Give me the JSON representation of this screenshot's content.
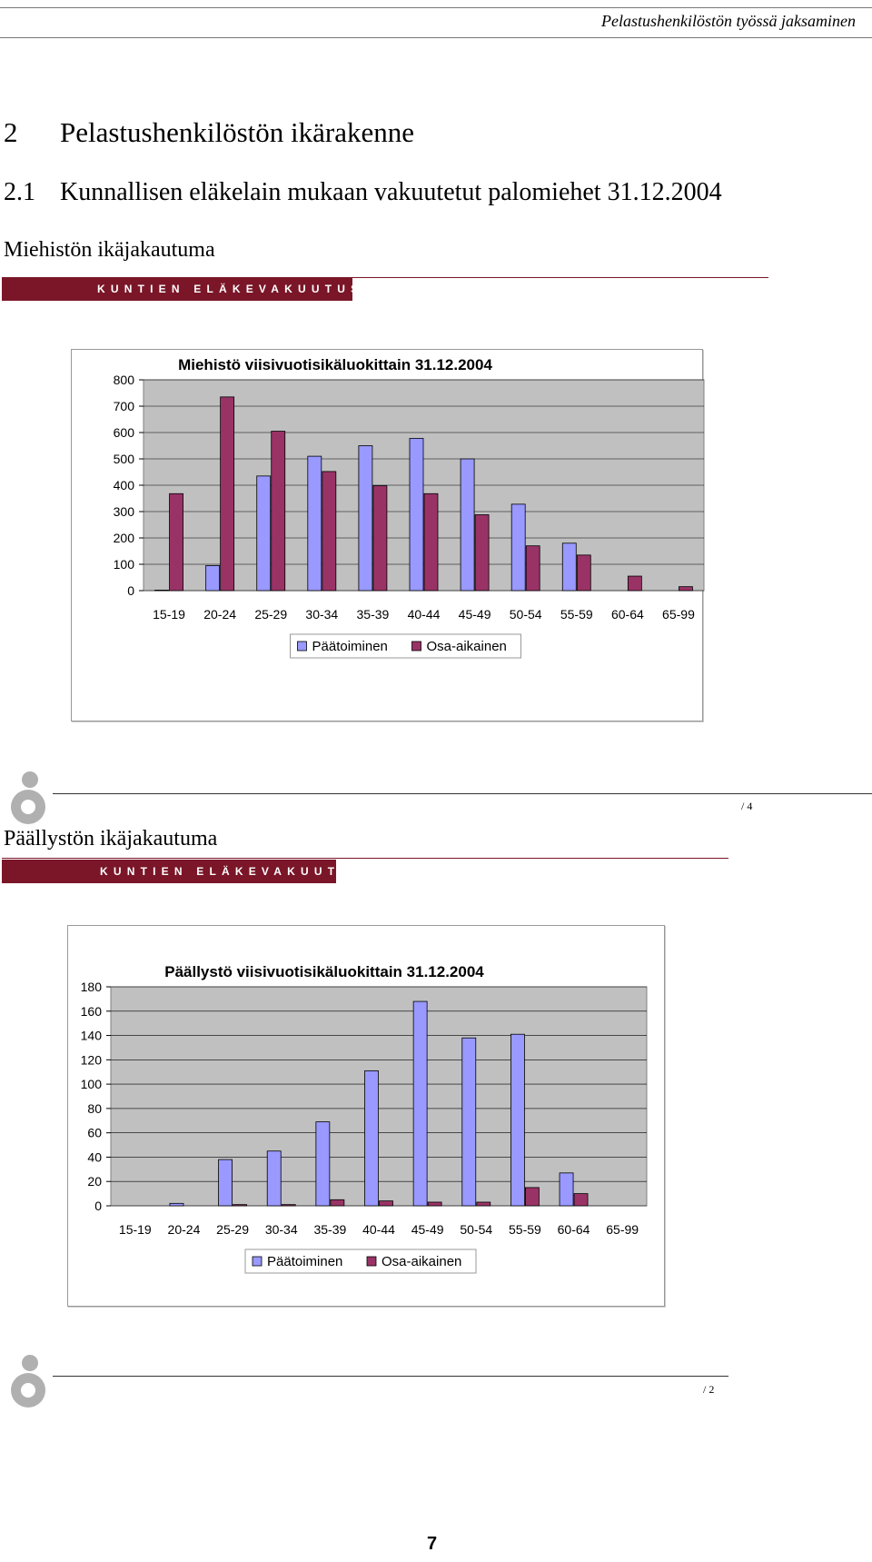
{
  "running_header": "Pelastushenkilöstön työssä jaksaminen",
  "heading1": {
    "number": "2",
    "text": "Pelastushenkilöstön ikärakenne"
  },
  "heading2": {
    "number": "2.1",
    "text": "Kunnallisen eläkelain mukaan vakuutetut palomiehet 31.12.2004"
  },
  "slides": [
    {
      "title": "Miehistön ikäjakautuma",
      "banner": "KUNTIEN ELÄKEVAKUUTUS",
      "page_ref": "/ 4"
    },
    {
      "title": "Päällystön ikäjakautuma",
      "banner": "KUNTIEN ELÄKEVAKUUTUS",
      "page_ref": "/ 2"
    }
  ],
  "page_number": "7",
  "colors": {
    "series1": "#9999ff",
    "series2": "#993366",
    "plot_bg": "#c0c0c0",
    "banner": "#7a1628"
  },
  "chart_data": [
    {
      "type": "bar",
      "title": "Miehistö viisivuotisikäluokittain 31.12.2004",
      "categories": [
        "15-19",
        "20-24",
        "25-29",
        "30-34",
        "35-39",
        "40-44",
        "45-49",
        "50-54",
        "55-59",
        "60-64",
        "65-99"
      ],
      "series": [
        {
          "name": "Päätoiminen",
          "values": [
            2,
            95,
            435,
            510,
            550,
            578,
            500,
            328,
            180,
            0,
            0
          ]
        },
        {
          "name": "Osa-aikainen",
          "values": [
            368,
            735,
            605,
            452,
            398,
            368,
            288,
            170,
            135,
            55,
            15
          ]
        }
      ],
      "ylim": [
        0,
        800
      ],
      "yticks": [
        "0",
        "100",
        "200",
        "300",
        "400",
        "500",
        "600",
        "700",
        "800"
      ],
      "grid": true,
      "legend": "bottom"
    },
    {
      "type": "bar",
      "title": "Päällystö viisivuotisikäluokittain 31.12.2004",
      "categories": [
        "15-19",
        "20-24",
        "25-29",
        "30-34",
        "35-39",
        "40-44",
        "45-49",
        "50-54",
        "55-59",
        "60-64",
        "65-99"
      ],
      "series": [
        {
          "name": "Päätoiminen",
          "values": [
            0,
            2,
            38,
            45,
            69,
            111,
            168,
            138,
            141,
            27,
            0
          ]
        },
        {
          "name": "Osa-aikainen",
          "values": [
            0,
            0,
            1,
            1,
            5,
            4,
            3,
            3,
            15,
            10,
            0
          ]
        }
      ],
      "ylim": [
        0,
        180
      ],
      "yticks": [
        "0",
        "20",
        "40",
        "60",
        "80",
        "100",
        "120",
        "140",
        "160",
        "180"
      ],
      "grid": true,
      "legend": "bottom"
    }
  ]
}
